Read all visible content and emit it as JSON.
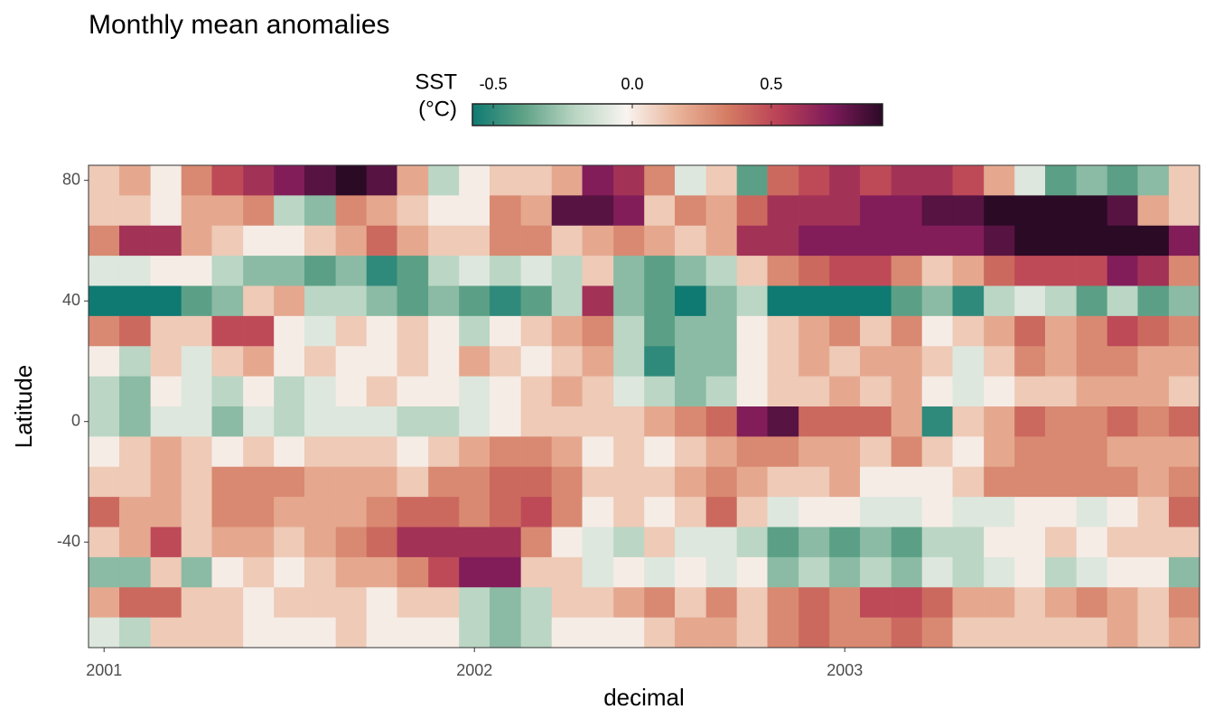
{
  "chart_data": {
    "type": "heatmap",
    "title": "Monthly mean anomalies",
    "x_label": "decimal",
    "y_label": "Latitude",
    "colorbar_title": [
      "SST",
      "(°C)"
    ],
    "colors": [
      "#0f7a72",
      "#5fa287",
      "#b9d5c2",
      "#f8f4f0",
      "#e9b49a",
      "#d47a63",
      "#b94056",
      "#7d1a5a",
      "#2b0a26"
    ],
    "clim": [
      -0.575,
      0.9
    ],
    "cticks": [
      -0.5,
      {
        "value": 0,
        "label": "0.0"
      },
      0.5
    ],
    "xlim": [
      2000.958,
      2003.958
    ],
    "xticks": [
      2001,
      2002,
      2003
    ],
    "ylim": [
      -75,
      85
    ],
    "yticks": [
      -40,
      0,
      40,
      80
    ],
    "x": [
      2001,
      2001.083,
      2001.167,
      2001.25,
      2001.333,
      2001.417,
      2001.5,
      2001.583,
      2001.667,
      2001.75,
      2001.833,
      2001.917,
      2002,
      2002.083,
      2002.167,
      2002.25,
      2002.333,
      2002.417,
      2002.5,
      2002.583,
      2002.667,
      2002.75,
      2002.833,
      2002.917,
      2003,
      2003.083,
      2003.167,
      2003.25,
      2003.333,
      2003.417,
      2003.5,
      2003.583,
      2003.667,
      2003.75,
      2003.833,
      2003.917
    ],
    "y": [
      80,
      70,
      60,
      50,
      40,
      30,
      20,
      10,
      0,
      -10,
      -20,
      -30,
      -40,
      -50,
      -60,
      -70
    ],
    "z": [
      [
        0.1,
        0.2,
        0,
        0.3,
        0.5,
        0.6,
        0.7,
        0.8,
        0.9,
        0.8,
        0.2,
        -0.2,
        0,
        0.1,
        0.1,
        0.2,
        0.7,
        0.6,
        0.3,
        -0.1,
        0.1,
        -0.4,
        0.4,
        0.5,
        0.6,
        0.5,
        0.6,
        0.6,
        0.5,
        0.2,
        -0.1,
        -0.4,
        -0.3,
        -0.4,
        -0.3,
        0.1
      ],
      [
        0.1,
        0.1,
        0,
        0.2,
        0.2,
        0.3,
        -0.2,
        -0.3,
        0.3,
        0.2,
        0.1,
        0,
        0,
        0.3,
        0.2,
        0.8,
        0.8,
        0.7,
        0.1,
        0.3,
        0.2,
        0.4,
        0.6,
        0.6,
        0.6,
        0.7,
        0.7,
        0.8,
        0.8,
        0.9,
        0.9,
        0.9,
        0.9,
        0.8,
        0.2,
        0.1
      ],
      [
        0.3,
        0.6,
        0.6,
        0.2,
        0.1,
        0,
        0,
        0.1,
        0.2,
        0.4,
        0.2,
        0.1,
        0.1,
        0.3,
        0.3,
        0.1,
        0.2,
        0.3,
        0.2,
        0.1,
        0.2,
        0.6,
        0.6,
        0.7,
        0.7,
        0.7,
        0.7,
        0.7,
        0.7,
        0.8,
        0.9,
        0.9,
        0.9,
        0.9,
        0.9,
        0.7
      ],
      [
        -0.1,
        -0.1,
        0,
        0,
        -0.2,
        -0.3,
        -0.3,
        -0.4,
        -0.3,
        -0.5,
        -0.4,
        -0.2,
        -0.1,
        -0.2,
        -0.1,
        -0.2,
        0.1,
        -0.3,
        -0.4,
        -0.3,
        -0.2,
        0.1,
        0.3,
        0.4,
        0.5,
        0.5,
        0.3,
        0.1,
        0.2,
        0.4,
        0.5,
        0.5,
        0.5,
        0.7,
        0.6,
        0.3
      ],
      [
        -0.6,
        -0.6,
        -0.6,
        -0.4,
        -0.3,
        0.1,
        0.2,
        -0.2,
        -0.2,
        -0.3,
        -0.4,
        -0.3,
        -0.4,
        -0.5,
        -0.4,
        -0.2,
        0.6,
        -0.3,
        -0.4,
        -0.6,
        -0.3,
        -0.2,
        -0.6,
        -0.6,
        -0.6,
        -0.6,
        -0.4,
        -0.3,
        -0.5,
        -0.2,
        -0.1,
        -0.2,
        -0.4,
        -0.2,
        -0.4,
        -0.3
      ],
      [
        0.3,
        0.4,
        0.1,
        0.1,
        0.5,
        0.5,
        0,
        -0.1,
        0.1,
        0,
        0.1,
        0,
        -0.2,
        0,
        0.1,
        0.2,
        0.3,
        -0.2,
        -0.4,
        -0.3,
        -0.3,
        0,
        0.1,
        0.2,
        0.3,
        0.1,
        0.3,
        0,
        0.1,
        0.2,
        0.4,
        0.2,
        0.3,
        0.5,
        0.4,
        0.3
      ],
      [
        0,
        -0.2,
        0.1,
        -0.1,
        0.1,
        0.2,
        0,
        0.1,
        0,
        0,
        0.1,
        0,
        0.2,
        0.1,
        0,
        0.1,
        0.2,
        -0.2,
        -0.5,
        -0.3,
        -0.3,
        0,
        0.1,
        0.2,
        0.1,
        0.2,
        0.2,
        0.1,
        -0.1,
        0.1,
        0.3,
        0.2,
        0.3,
        0.3,
        0.2,
        0.2
      ],
      [
        -0.2,
        -0.3,
        0,
        -0.1,
        -0.2,
        0,
        -0.2,
        -0.1,
        0,
        0.1,
        0,
        0,
        -0.1,
        0,
        0.1,
        0.2,
        0.1,
        -0.1,
        -0.2,
        -0.3,
        -0.2,
        0,
        0.1,
        0.1,
        0.2,
        0.1,
        0.2,
        0,
        -0.1,
        0,
        0.1,
        0.1,
        0.2,
        0.2,
        0.2,
        0.1
      ],
      [
        -0.2,
        -0.3,
        -0.1,
        -0.1,
        -0.3,
        -0.1,
        -0.2,
        -0.1,
        -0.1,
        -0.1,
        -0.2,
        -0.2,
        -0.1,
        0,
        0.1,
        0.1,
        0.1,
        0.1,
        0.2,
        0.3,
        0.4,
        0.7,
        0.8,
        0.4,
        0.4,
        0.4,
        0.2,
        -0.5,
        0.1,
        0.2,
        0.4,
        0.3,
        0.3,
        0.4,
        0.3,
        0.4
      ],
      [
        0,
        0.1,
        0.2,
        0.1,
        0,
        0.1,
        0,
        0.1,
        0.1,
        0.1,
        0,
        0.1,
        0.2,
        0.3,
        0.3,
        0.2,
        0,
        0.1,
        0,
        0.1,
        0.2,
        0.3,
        0.3,
        0.2,
        0.2,
        0.1,
        0.3,
        0.1,
        0,
        0.2,
        0.3,
        0.3,
        0.3,
        0.2,
        0.2,
        0.2
      ],
      [
        0.1,
        0.1,
        0.2,
        0.1,
        0.3,
        0.3,
        0.3,
        0.2,
        0.2,
        0.2,
        0.1,
        0.3,
        0.3,
        0.4,
        0.4,
        0.3,
        0.1,
        0.1,
        0.1,
        0.2,
        0.3,
        0.2,
        0.1,
        0.1,
        0.2,
        0,
        0,
        0,
        0.1,
        0.3,
        0.3,
        0.3,
        0.3,
        0.3,
        0.2,
        0.3
      ],
      [
        0.4,
        0.2,
        0.2,
        0.1,
        0.3,
        0.3,
        0.2,
        0.2,
        0.2,
        0.3,
        0.4,
        0.4,
        0.3,
        0.4,
        0.5,
        0.3,
        0,
        0.1,
        0,
        0.1,
        0.4,
        0.1,
        -0.1,
        0,
        0,
        -0.1,
        -0.1,
        0,
        -0.1,
        -0.1,
        0,
        0,
        -0.1,
        0,
        0.1,
        0.4
      ],
      [
        0.1,
        0.2,
        0.5,
        0.1,
        0.2,
        0.2,
        0.1,
        0.2,
        0.3,
        0.4,
        0.6,
        0.6,
        0.6,
        0.6,
        0.3,
        0,
        -0.1,
        -0.2,
        0.1,
        -0.1,
        -0.1,
        -0.2,
        -0.4,
        -0.3,
        -0.4,
        -0.3,
        -0.4,
        -0.2,
        -0.2,
        0,
        0,
        0.1,
        0,
        0.1,
        0.1,
        0.1
      ],
      [
        -0.3,
        -0.3,
        0.1,
        -0.3,
        0,
        0.1,
        0,
        0.1,
        0.2,
        0.2,
        0.3,
        0.5,
        0.7,
        0.7,
        0.1,
        0.1,
        -0.1,
        0,
        -0.1,
        0,
        -0.1,
        0,
        -0.3,
        -0.2,
        -0.3,
        -0.2,
        -0.3,
        -0.1,
        -0.2,
        -0.1,
        0,
        -0.2,
        -0.1,
        0,
        0,
        -0.3
      ],
      [
        0.2,
        0.4,
        0.4,
        0.1,
        0.1,
        0,
        0.1,
        0.1,
        0.1,
        0,
        0.1,
        0.1,
        -0.2,
        -0.3,
        -0.2,
        0.1,
        0.1,
        0.2,
        0.3,
        0.1,
        0.3,
        0.1,
        0.3,
        0.4,
        0.3,
        0.5,
        0.5,
        0.4,
        0.2,
        0.2,
        0.1,
        0.2,
        0.3,
        0.2,
        0.1,
        0.3
      ],
      [
        -0.1,
        -0.2,
        0.1,
        0.1,
        0.1,
        0,
        0,
        0,
        0.1,
        0,
        0,
        0,
        -0.2,
        -0.3,
        -0.2,
        0,
        0,
        0,
        0.1,
        0.2,
        0.2,
        0.1,
        0.3,
        0.4,
        0.3,
        0.3,
        0.4,
        0.3,
        0.1,
        0.1,
        0.1,
        0.1,
        0.1,
        0.2,
        0.1,
        0.2
      ]
    ]
  }
}
